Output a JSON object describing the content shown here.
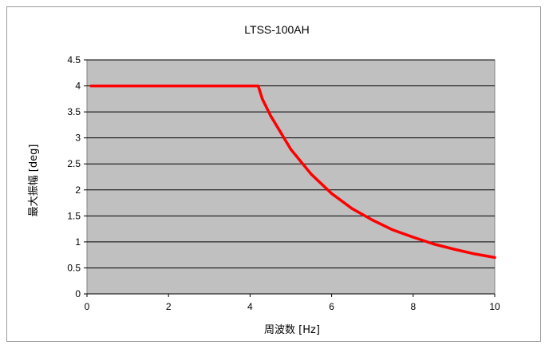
{
  "chart_data": {
    "type": "line",
    "title": "LTSS-100AH",
    "xlabel": "周波数 [Hz]",
    "ylabel": "最大振幅 [deg]",
    "xlim": [
      0,
      10
    ],
    "ylim": [
      0,
      4.5
    ],
    "x_ticks": [
      "0",
      "2",
      "4",
      "6",
      "8",
      "10"
    ],
    "y_ticks": [
      "0",
      "0.5",
      "1",
      "1.5",
      "2",
      "2.5",
      "3",
      "3.5",
      "4",
      "4.5"
    ],
    "grid": "horizontal",
    "legend": "none",
    "plot_background": "#c0c0c0",
    "series": [
      {
        "color": "#ff0000",
        "x": [
          0.1,
          1,
          2,
          3,
          4,
          4.2,
          4.3,
          4.5,
          5,
          5.5,
          6,
          6.5,
          7,
          7.5,
          8,
          8.5,
          9,
          9.5,
          10
        ],
        "y": [
          4,
          4,
          4,
          4,
          4,
          4,
          3.75,
          3.43,
          2.78,
          2.3,
          1.93,
          1.64,
          1.42,
          1.23,
          1.09,
          0.96,
          0.86,
          0.77,
          0.7
        ]
      }
    ]
  }
}
